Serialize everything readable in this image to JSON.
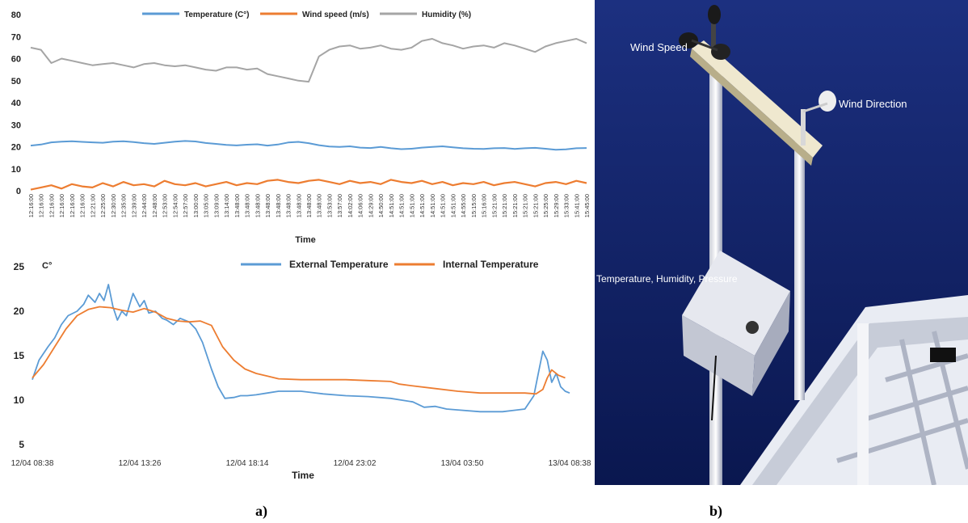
{
  "panels": {
    "a_label": "a)",
    "b_label": "b)"
  },
  "chart_data": [
    {
      "type": "line",
      "title": "",
      "xlabel": "Time",
      "ylabel": "",
      "ylim": [
        0,
        80
      ],
      "yticks": [
        0,
        10,
        20,
        30,
        40,
        50,
        60,
        70,
        80
      ],
      "x_tick_labels": [
        "12:16:00",
        "12:16:00",
        "12:16:00",
        "12:16:00",
        "12:16:00",
        "12:16:00",
        "12:21:00",
        "12:25:00",
        "12:30:00",
        "12:35:00",
        "12:39:00",
        "12:44:00",
        "12:48:00",
        "12:53:00",
        "12:54:00",
        "12:57:00",
        "13:00:00",
        "13:05:00",
        "13:09:00",
        "13:14:00",
        "13:48:00",
        "13:48:00",
        "13:48:00",
        "13:48:00",
        "13:48:00",
        "13:48:00",
        "13:48:00",
        "13:48:00",
        "13:48:00",
        "13:53:00",
        "13:57:00",
        "14:02:00",
        "14:06:00",
        "14:29:00",
        "14:50:00",
        "14:51:00",
        "14:51:00",
        "14:51:00",
        "14:51:00",
        "14:51:00",
        "14:51:00",
        "14:51:00",
        "14:55:00",
        "15:15:00",
        "15:16:00",
        "15:21:00",
        "15:21:00",
        "15:21:00",
        "15:21:00",
        "15:21:00",
        "15:25:00",
        "15:29:00",
        "15:33:00",
        "15:41:00",
        "15:45:00"
      ],
      "legend_position": "top",
      "series": [
        {
          "name": "Temperature (C°)",
          "color": "#5b9bd5",
          "values": [
            20.5,
            21,
            22,
            22.3,
            22.5,
            22.2,
            22,
            21.8,
            22.3,
            22.5,
            22.1,
            21.6,
            21.3,
            21.8,
            22.3,
            22.6,
            22.4,
            21.7,
            21.3,
            20.8,
            20.6,
            20.9,
            21.1,
            20.5,
            21,
            21.9,
            22.2,
            21.6,
            20.7,
            20.1,
            19.9,
            20.2,
            19.6,
            19.4,
            19.9,
            19.3,
            18.9,
            19.1,
            19.6,
            19.9,
            20.2,
            19.7,
            19.3,
            19.1,
            19,
            19.3,
            19.4,
            19,
            19.3,
            19.5,
            19.1,
            18.6,
            18.8,
            19.3,
            19.4
          ]
        },
        {
          "name": "Wind speed (m/s)",
          "color": "#ed7d31",
          "values": [
            0.5,
            1.5,
            2.5,
            1,
            3,
            2,
            1.5,
            3.5,
            2,
            4,
            2.5,
            3,
            2,
            4.5,
            3,
            2.5,
            3.5,
            2,
            3,
            4,
            2.5,
            3.5,
            3,
            4.5,
            5,
            4,
            3.5,
            4.5,
            5,
            4,
            3,
            4.5,
            3.5,
            4,
            3,
            5,
            4,
            3.5,
            4.5,
            3,
            4,
            2.5,
            3.5,
            3,
            4,
            2.5,
            3.5,
            4,
            3,
            2,
            3.5,
            4,
            3,
            4.5,
            3.5
          ]
        },
        {
          "name": "Humidity (%)",
          "color": "#a5a5a5",
          "values": [
            65,
            64,
            58,
            60,
            59,
            58,
            57,
            57.5,
            58,
            57,
            56,
            57.5,
            58,
            57,
            56.5,
            57,
            56,
            55,
            54.5,
            56,
            56,
            55,
            55.5,
            53,
            52,
            51,
            50,
            49.5,
            61,
            64,
            65.5,
            66,
            64.5,
            65,
            66,
            64.5,
            64,
            65,
            68,
            69,
            67,
            66,
            64.5,
            65.5,
            66,
            65,
            67,
            66,
            64.5,
            63,
            65.5,
            67,
            68,
            69,
            67
          ]
        }
      ]
    },
    {
      "type": "line",
      "title": "",
      "xlabel": "Time",
      "ylabel": "C°",
      "ylim": [
        5,
        25
      ],
      "yticks": [
        5,
        10,
        15,
        20,
        25
      ],
      "x_tick_labels": [
        "12/04 08:38",
        "12/04 13:26",
        "12/04 18:14",
        "12/04 23:02",
        "13/04 03:50",
        "13/04 08:38"
      ],
      "x_range_hours": [
        0,
        24
      ],
      "legend_position": "top",
      "series": [
        {
          "name": "External Temperature",
          "color": "#5b9bd5",
          "x": [
            0,
            0.3,
            0.7,
            1,
            1.3,
            1.6,
            2,
            2.3,
            2.5,
            2.8,
            3,
            3.2,
            3.4,
            3.6,
            3.8,
            4,
            4.2,
            4.5,
            4.8,
            5,
            5.2,
            5.5,
            5.8,
            6,
            6.3,
            6.6,
            7,
            7.3,
            7.6,
            8,
            8.3,
            8.6,
            9,
            9.3,
            9.6,
            10,
            10.5,
            11,
            12,
            13,
            14,
            15,
            16,
            16.5,
            17,
            17.5,
            18,
            18.5,
            19,
            20,
            21,
            22,
            22.4,
            22.6,
            22.8,
            23,
            23.2,
            23.4,
            23.6,
            23.8,
            24
          ],
          "values": [
            12.3,
            14.5,
            16,
            17,
            18.5,
            19.5,
            20,
            20.8,
            21.8,
            21,
            22,
            21.2,
            23,
            20.5,
            19,
            20,
            19.5,
            22,
            20.5,
            21.2,
            19.8,
            20,
            19.2,
            19,
            18.5,
            19.2,
            18.8,
            18,
            16.5,
            13.5,
            11.5,
            10.2,
            10.3,
            10.5,
            10.5,
            10.6,
            10.8,
            11,
            11,
            10.7,
            10.5,
            10.4,
            10.2,
            10,
            9.8,
            9.2,
            9.3,
            9,
            8.9,
            8.7,
            8.7,
            9,
            10.5,
            13,
            15.5,
            14.5,
            12,
            13,
            11.5,
            11,
            10.8
          ]
        },
        {
          "name": "Internal Temperature",
          "color": "#ed7d31",
          "x": [
            0,
            0.5,
            1,
            1.5,
            2,
            2.5,
            3,
            3.5,
            4,
            4.5,
            5,
            5.5,
            6,
            6.5,
            7,
            7.5,
            8,
            8.5,
            9,
            9.5,
            10,
            10.5,
            11,
            12,
            13,
            14,
            15,
            16,
            16.4,
            17,
            18,
            19,
            20,
            21,
            22,
            22.5,
            22.8,
            23,
            23.2,
            23.5,
            23.8
          ],
          "values": [
            12.5,
            14,
            16,
            18,
            19.5,
            20.2,
            20.5,
            20.4,
            20.1,
            19.9,
            20.3,
            19.9,
            19.2,
            18.9,
            18.8,
            18.9,
            18.4,
            16,
            14.5,
            13.5,
            13,
            12.7,
            12.4,
            12.3,
            12.3,
            12.3,
            12.2,
            12.1,
            11.8,
            11.6,
            11.3,
            11,
            10.8,
            10.8,
            10.8,
            10.7,
            11.2,
            12.5,
            13.4,
            12.8,
            12.5
          ]
        }
      ]
    }
  ],
  "photo": {
    "labels": [
      "Wind Speed",
      "Wind Direction",
      "Temperature, Humidity, Pressure"
    ],
    "sky_color": "#0f2268"
  }
}
